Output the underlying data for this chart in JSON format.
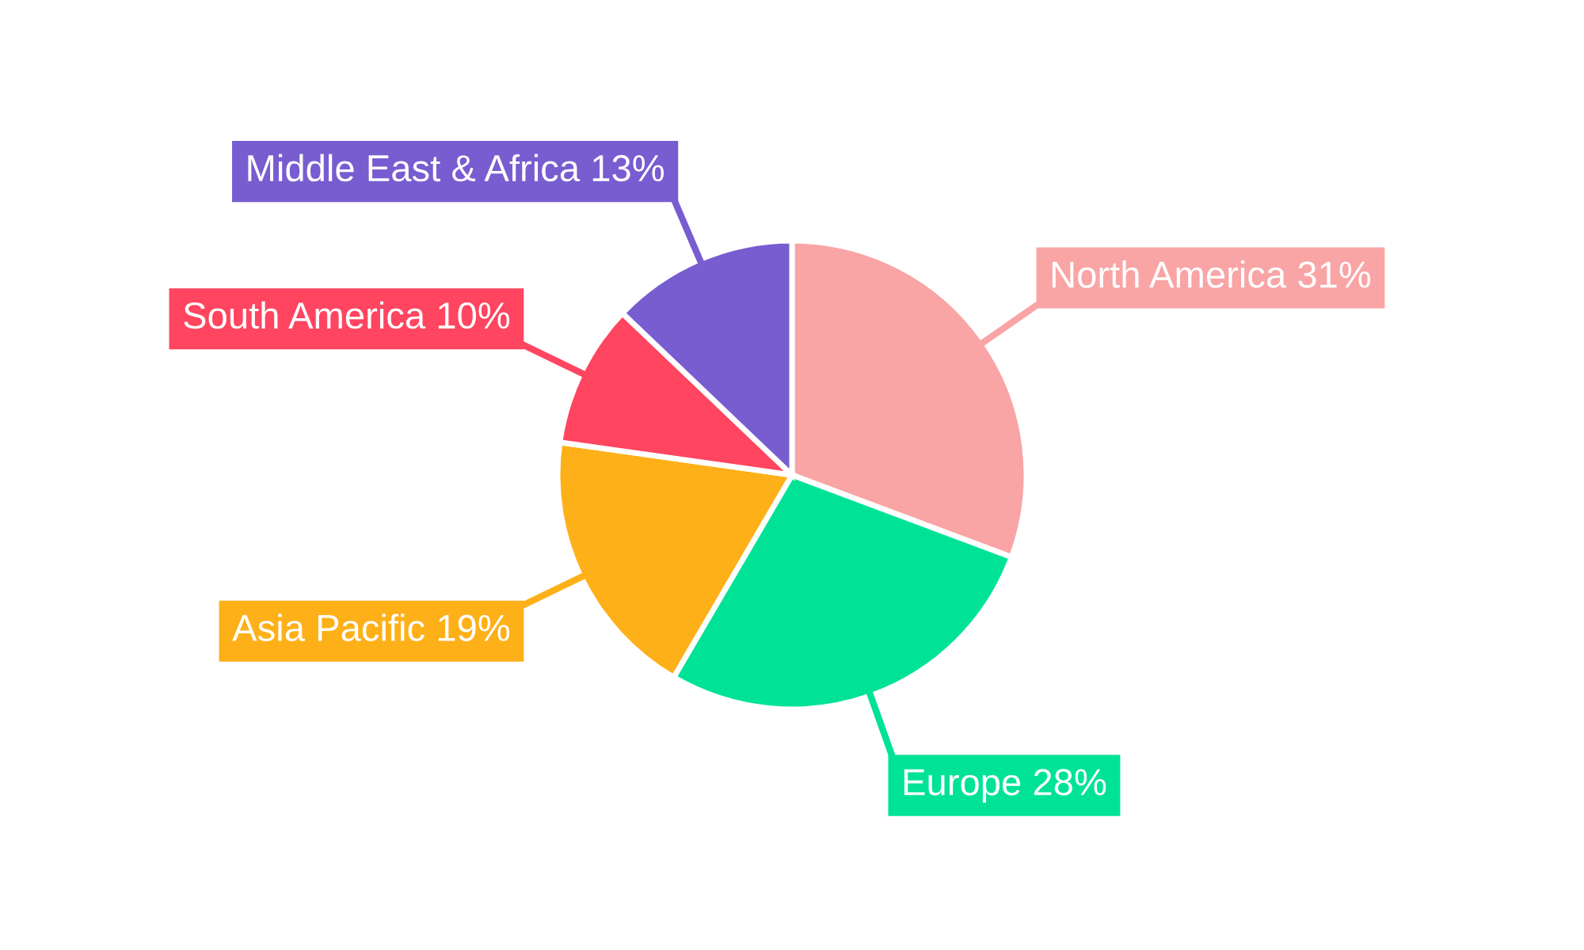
{
  "chart_data": {
    "type": "pie",
    "categories": [
      "North America",
      "Europe",
      "Asia Pacific",
      "South America",
      "Middle East & Africa"
    ],
    "values": [
      31,
      28,
      19,
      10,
      13
    ],
    "colors": [
      "#f9a4a5",
      "#00e396",
      "#feb019",
      "#ff4560",
      "#775dd0"
    ],
    "value_labels": [
      "31%",
      "28%",
      "19%",
      "10%",
      "13%"
    ],
    "legend": false
  }
}
